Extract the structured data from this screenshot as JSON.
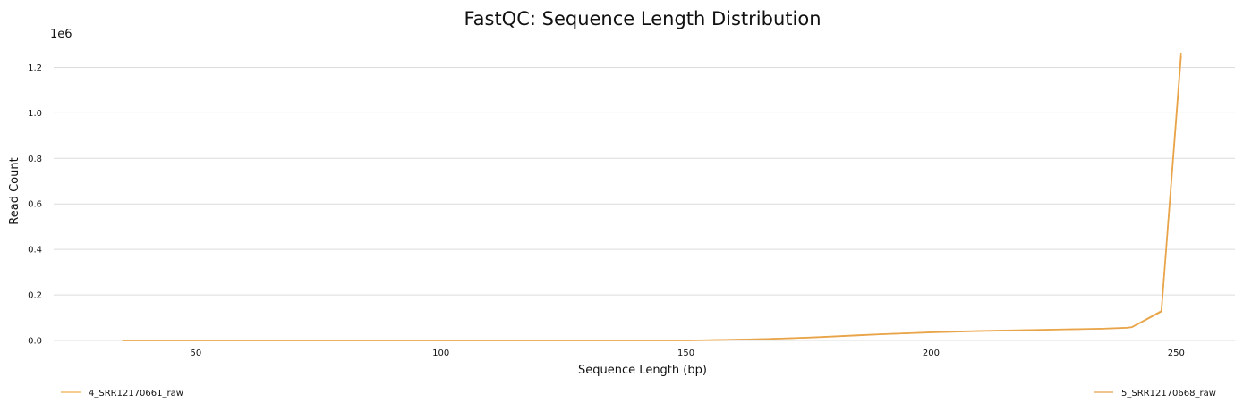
{
  "chart_data": {
    "type": "line",
    "title": "FastQC: Sequence Length Distribution",
    "xlabel": "Sequence Length (bp)",
    "ylabel": "Read Count",
    "y_offset_label": "1e6",
    "xlim": [
      21,
      262
    ],
    "ylim": [
      0,
      1300000
    ],
    "x_ticks": [
      50,
      100,
      150,
      200,
      250
    ],
    "x_tick_labels": [
      "50",
      "100",
      "150",
      "200",
      "250"
    ],
    "y_ticks": [
      0,
      200000,
      400000,
      600000,
      800000,
      1000000,
      1200000
    ],
    "y_tick_labels": [
      "0.0",
      "0.2",
      "0.4",
      "0.6",
      "0.8",
      "1.0",
      "1.2"
    ],
    "grid": true,
    "legend_placement": "bottom",
    "series": [
      {
        "name": "4_SRR12170661_raw",
        "color": "#f0ad4e",
        "x": [
          35,
          50,
          100,
          150,
          155,
          160,
          165,
          170,
          175,
          180,
          185,
          190,
          195,
          200,
          205,
          210,
          215,
          220,
          225,
          230,
          235,
          240,
          241,
          247,
          251
        ],
        "y": [
          0,
          0,
          0,
          0,
          1500,
          3500,
          6000,
          9000,
          13000,
          18000,
          23000,
          28000,
          32000,
          36000,
          39000,
          42000,
          44000,
          46000,
          48000,
          50000,
          52000,
          56000,
          59000,
          130000,
          1265000
        ]
      },
      {
        "name": "5_SRR12170668_raw",
        "color": "#e8a44a",
        "x": [
          35,
          50,
          100,
          150,
          155,
          160,
          165,
          170,
          175,
          180,
          185,
          190,
          195,
          200,
          205,
          210,
          215,
          220,
          225,
          230,
          235,
          240,
          241,
          247,
          251
        ],
        "y": [
          0,
          0,
          0,
          0,
          1000,
          3000,
          5500,
          8500,
          12000,
          17000,
          22000,
          27000,
          31000,
          35000,
          38000,
          41000,
          43000,
          45000,
          47000,
          49000,
          51000,
          55000,
          58000,
          127000,
          1250000
        ]
      }
    ]
  }
}
